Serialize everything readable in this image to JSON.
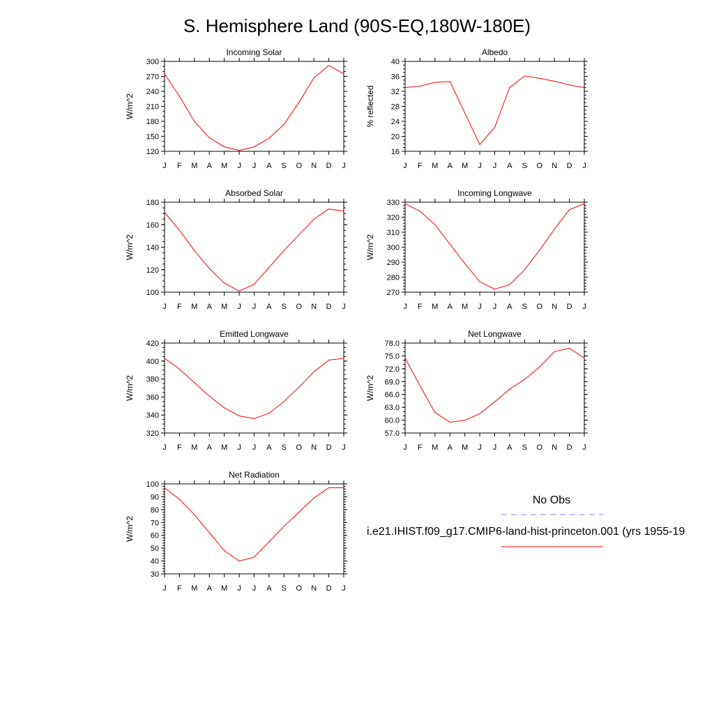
{
  "title": "S. Hemisphere Land (90S-EQ,180W-180E)",
  "colors": {
    "model": "#ff0000",
    "obs": "#8080ff",
    "axis": "#000000"
  },
  "legend": {
    "obs_label": "No Obs",
    "model_label": "i.e21.IHIST.f09_g17.CMIP6-land-hist-princeton.001 (yrs 1955-19"
  },
  "chart_data": [
    {
      "type": "line",
      "title": "Incoming Solar",
      "xlabel": "",
      "ylabel": "W/m^2",
      "x": [
        "J",
        "F",
        "M",
        "A",
        "M",
        "J",
        "J",
        "A",
        "S",
        "O",
        "N",
        "D",
        "J"
      ],
      "ylim": [
        120,
        300
      ],
      "yticks": [
        "120",
        "150",
        "180",
        "210",
        "240",
        "270",
        "300"
      ],
      "y_minor_step": 10,
      "series": [
        {
          "values": [
            275,
            230,
            180,
            147,
            129,
            122,
            129,
            146,
            174,
            218,
            267,
            292,
            275
          ]
        }
      ]
    },
    {
      "type": "line",
      "title": "Albedo",
      "xlabel": "",
      "ylabel": "% reflected",
      "x": [
        "J",
        "F",
        "M",
        "A",
        "M",
        "J",
        "J",
        "A",
        "S",
        "O",
        "N",
        "D",
        "J"
      ],
      "ylim": [
        16,
        40
      ],
      "yticks": [
        "16",
        "20",
        "24",
        "28",
        "32",
        "36",
        "40"
      ],
      "y_minor_step": 1,
      "series": [
        {
          "values": [
            33.0,
            33.4,
            34.4,
            34.6,
            26.2,
            17.8,
            22.4,
            33.0,
            36.1,
            35.5,
            34.7,
            33.7,
            33.0
          ]
        }
      ]
    },
    {
      "type": "line",
      "title": "Absorbed Solar",
      "xlabel": "",
      "ylabel": "W/m^2",
      "x": [
        "J",
        "F",
        "M",
        "A",
        "M",
        "J",
        "J",
        "A",
        "S",
        "O",
        "N",
        "D",
        "J"
      ],
      "ylim": [
        100,
        180
      ],
      "yticks": [
        "100",
        "120",
        "140",
        "160",
        "180"
      ],
      "y_minor_step": 5,
      "series": [
        {
          "values": [
            171,
            155,
            137,
            121,
            108,
            101,
            107,
            122,
            137,
            151,
            165,
            174,
            172
          ]
        }
      ]
    },
    {
      "type": "line",
      "title": "Incoming Longwave",
      "xlabel": "",
      "ylabel": "W/m^2",
      "x": [
        "J",
        "F",
        "M",
        "A",
        "M",
        "J",
        "J",
        "A",
        "S",
        "O",
        "N",
        "D",
        "J"
      ],
      "ylim": [
        270,
        330
      ],
      "yticks": [
        "270",
        "280",
        "290",
        "300",
        "310",
        "320",
        "330"
      ],
      "y_minor_step": 2,
      "series": [
        {
          "values": [
            329,
            324,
            315,
            302,
            289,
            277,
            272,
            275,
            285,
            298,
            312,
            325,
            329
          ]
        }
      ]
    },
    {
      "type": "line",
      "title": "Emitted Longwave",
      "xlabel": "",
      "ylabel": "W/m^2",
      "x": [
        "J",
        "F",
        "M",
        "A",
        "M",
        "J",
        "J",
        "A",
        "S",
        "O",
        "N",
        "D",
        "J"
      ],
      "ylim": [
        320,
        420
      ],
      "yticks": [
        "320",
        "340",
        "360",
        "380",
        "400",
        "420"
      ],
      "y_minor_step": 5,
      "series": [
        {
          "values": [
            403,
            391,
            376,
            361,
            348,
            339,
            336,
            342,
            355,
            371,
            388,
            401,
            403
          ]
        }
      ]
    },
    {
      "type": "line",
      "title": "Net Longwave",
      "xlabel": "",
      "ylabel": "W/m^2",
      "x": [
        "J",
        "F",
        "M",
        "A",
        "M",
        "J",
        "J",
        "A",
        "S",
        "O",
        "N",
        "D",
        "J"
      ],
      "ylim": [
        57.0,
        78.0
      ],
      "yticks": [
        "57.0",
        "60.0",
        "63.0",
        "66.0",
        "69.0",
        "72.0",
        "75.0",
        "78.0"
      ],
      "y_minor_step": 1,
      "series": [
        {
          "values": [
            74.5,
            68.0,
            61.8,
            59.5,
            60.0,
            61.5,
            64.3,
            67.2,
            69.5,
            72.4,
            76.0,
            76.8,
            74.5
          ]
        }
      ]
    },
    {
      "type": "line",
      "title": "Net Radiation",
      "xlabel": "",
      "ylabel": "W/m^2",
      "x": [
        "J",
        "F",
        "M",
        "A",
        "M",
        "J",
        "J",
        "A",
        "S",
        "O",
        "N",
        "D",
        "J"
      ],
      "ylim": [
        30,
        100
      ],
      "yticks": [
        "30",
        "40",
        "50",
        "60",
        "70",
        "80",
        "90",
        "100"
      ],
      "y_minor_step": 2,
      "series": [
        {
          "values": [
            97,
            88,
            76,
            62,
            48,
            40,
            43,
            55,
            67,
            78,
            89,
            97,
            97
          ]
        }
      ]
    }
  ]
}
